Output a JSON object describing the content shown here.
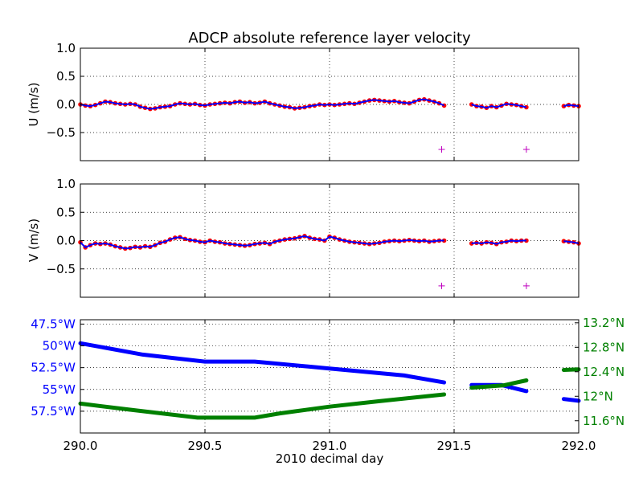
{
  "title": "ADCP absolute reference layer velocity",
  "xlabel": "2010 decimal day",
  "colors": {
    "u_points": "#ff0000",
    "u_line": "#0000ff",
    "v_points": "#ff0000",
    "v_line": "#0000ff",
    "flag_marker": "#bf00bf",
    "lon": "#0000ff",
    "lat": "#008000",
    "grid": "#000000"
  },
  "chart_data": [
    {
      "type": "scatter",
      "id": "u",
      "ylabel": "U (m/s)",
      "xlim": [
        290.0,
        292.0
      ],
      "ylim": [
        -1.0,
        1.0
      ],
      "yticks": [
        1.0,
        0.5,
        0.0,
        -0.5
      ],
      "ytick_labels": [
        "1.0",
        "0.5",
        "0.0",
        "−0.5"
      ],
      "grid": true,
      "series": [
        {
          "kind": "points+line",
          "x": [
            290.0,
            290.02,
            290.04,
            290.06,
            290.08,
            290.1,
            290.12,
            290.14,
            290.16,
            290.18,
            290.2,
            290.22,
            290.24,
            290.26,
            290.28,
            290.3,
            290.32,
            290.34,
            290.36,
            290.38,
            290.4,
            290.42,
            290.44,
            290.46,
            290.48,
            290.5,
            290.52,
            290.54,
            290.56,
            290.58,
            290.6,
            290.62,
            290.64,
            290.66,
            290.68,
            290.7,
            290.72,
            290.74,
            290.76,
            290.78,
            290.8,
            290.82,
            290.84,
            290.86,
            290.88,
            290.9,
            290.92,
            290.94,
            290.96,
            290.98,
            291.0,
            291.02,
            291.04,
            291.06,
            291.08,
            291.1,
            291.12,
            291.14,
            291.16,
            291.18,
            291.2,
            291.22,
            291.24,
            291.26,
            291.28,
            291.3,
            291.32,
            291.34,
            291.36,
            291.38,
            291.4,
            291.42,
            291.44,
            291.46,
            291.57,
            291.59,
            291.61,
            291.63,
            291.65,
            291.67,
            291.69,
            291.71,
            291.73,
            291.75,
            291.77,
            291.79,
            291.94,
            291.96,
            291.98,
            292.0
          ],
          "y": [
            0.0,
            -0.02,
            -0.03,
            -0.01,
            0.02,
            0.05,
            0.04,
            0.02,
            0.01,
            0.0,
            0.01,
            0.0,
            -0.04,
            -0.06,
            -0.08,
            -0.07,
            -0.05,
            -0.04,
            -0.03,
            0.0,
            0.02,
            0.01,
            0.0,
            0.01,
            -0.01,
            -0.02,
            0.0,
            0.01,
            0.02,
            0.03,
            0.02,
            0.04,
            0.05,
            0.03,
            0.04,
            0.02,
            0.03,
            0.05,
            0.02,
            0.0,
            -0.02,
            -0.04,
            -0.05,
            -0.07,
            -0.06,
            -0.05,
            -0.03,
            -0.02,
            0.0,
            -0.01,
            0.0,
            -0.01,
            0.0,
            0.01,
            0.02,
            0.01,
            0.03,
            0.05,
            0.07,
            0.08,
            0.07,
            0.06,
            0.05,
            0.06,
            0.04,
            0.03,
            0.02,
            0.05,
            0.08,
            0.09,
            0.07,
            0.05,
            0.02,
            -0.02,
            0.0,
            -0.03,
            -0.04,
            -0.06,
            -0.03,
            -0.05,
            -0.02,
            0.01,
            0.0,
            -0.01,
            -0.03,
            -0.05,
            -0.03,
            -0.01,
            -0.02,
            -0.03
          ]
        },
        {
          "kind": "flag-markers",
          "x": [
            291.45,
            291.79
          ],
          "y": [
            -0.8,
            -0.8
          ]
        }
      ]
    },
    {
      "type": "scatter",
      "id": "v",
      "ylabel": "V (m/s)",
      "xlim": [
        290.0,
        292.0
      ],
      "ylim": [
        -1.0,
        1.0
      ],
      "yticks": [
        1.0,
        0.5,
        0.0,
        -0.5
      ],
      "ytick_labels": [
        "1.0",
        "0.5",
        "0.0",
        "−0.5"
      ],
      "grid": true,
      "series": [
        {
          "kind": "points+line",
          "x": [
            290.0,
            290.02,
            290.04,
            290.06,
            290.08,
            290.1,
            290.12,
            290.14,
            290.16,
            290.18,
            290.2,
            290.22,
            290.24,
            290.26,
            290.28,
            290.3,
            290.32,
            290.34,
            290.36,
            290.38,
            290.4,
            290.42,
            290.44,
            290.46,
            290.48,
            290.5,
            290.52,
            290.54,
            290.56,
            290.58,
            290.6,
            290.62,
            290.64,
            290.66,
            290.68,
            290.7,
            290.72,
            290.74,
            290.76,
            290.78,
            290.8,
            290.82,
            290.84,
            290.86,
            290.88,
            290.9,
            290.92,
            290.94,
            290.96,
            290.98,
            291.0,
            291.02,
            291.04,
            291.06,
            291.08,
            291.1,
            291.12,
            291.14,
            291.16,
            291.18,
            291.2,
            291.22,
            291.24,
            291.26,
            291.28,
            291.3,
            291.32,
            291.34,
            291.36,
            291.38,
            291.4,
            291.42,
            291.44,
            291.46,
            291.57,
            291.59,
            291.61,
            291.63,
            291.65,
            291.67,
            291.69,
            291.71,
            291.73,
            291.75,
            291.77,
            291.79,
            291.94,
            291.96,
            291.98,
            292.0
          ],
          "y": [
            -0.03,
            -0.12,
            -0.08,
            -0.05,
            -0.06,
            -0.05,
            -0.07,
            -0.1,
            -0.12,
            -0.14,
            -0.13,
            -0.11,
            -0.12,
            -0.1,
            -0.11,
            -0.08,
            -0.04,
            -0.02,
            0.02,
            0.05,
            0.06,
            0.03,
            0.01,
            0.0,
            -0.02,
            -0.03,
            0.0,
            -0.02,
            -0.03,
            -0.05,
            -0.06,
            -0.07,
            -0.08,
            -0.09,
            -0.08,
            -0.06,
            -0.05,
            -0.04,
            -0.06,
            -0.02,
            0.0,
            0.02,
            0.03,
            0.04,
            0.06,
            0.08,
            0.05,
            0.03,
            0.02,
            0.0,
            0.07,
            0.05,
            0.02,
            0.0,
            -0.02,
            -0.03,
            -0.04,
            -0.05,
            -0.06,
            -0.05,
            -0.04,
            -0.02,
            -0.01,
            0.0,
            -0.01,
            0.0,
            0.01,
            0.0,
            -0.01,
            0.0,
            -0.02,
            -0.01,
            0.0,
            0.0,
            -0.05,
            -0.04,
            -0.05,
            -0.03,
            -0.04,
            -0.06,
            -0.03,
            -0.02,
            0.0,
            -0.01,
            0.0,
            0.0,
            -0.01,
            -0.02,
            -0.03,
            -0.05
          ]
        },
        {
          "kind": "flag-markers",
          "x": [
            291.45,
            291.79
          ],
          "y": [
            -0.8,
            -0.8
          ]
        }
      ]
    },
    {
      "type": "line",
      "id": "position",
      "xlim": [
        290.0,
        292.0
      ],
      "xticks": [
        290.0,
        290.5,
        291.0,
        291.5,
        292.0
      ],
      "xtick_labels": [
        "290.0",
        "290.5",
        "291.0",
        "291.5",
        "292.0"
      ],
      "grid": true,
      "left_axis": {
        "name": "longitude",
        "ylim": [
          -60.0,
          -47.0
        ],
        "yticks": [
          -47.5,
          -50.0,
          -52.5,
          -55.0,
          -57.5
        ],
        "ytick_labels": [
          "47.5°W",
          "50°W",
          "52.5°W",
          "55°W",
          "57.5°W"
        ]
      },
      "right_axis": {
        "name": "latitude",
        "ylim": [
          11.4,
          13.25
        ],
        "yticks": [
          13.2,
          12.8,
          12.4,
          12.0,
          11.6
        ],
        "ytick_labels": [
          "13.2°N",
          "12.8°N",
          "12.4°N",
          "12°N",
          "11.6°N"
        ]
      },
      "series": [
        {
          "axis": "left",
          "segments": [
            {
              "x": [
                290.0,
                290.25,
                290.5,
                290.7,
                291.0,
                291.3,
                291.46
              ],
              "y": [
                -49.7,
                -51.0,
                -51.8,
                -51.8,
                -52.6,
                -53.4,
                -54.2
              ]
            },
            {
              "x": [
                291.57,
                291.69,
                291.79
              ],
              "y": [
                -54.5,
                -54.5,
                -55.2
              ]
            },
            {
              "x": [
                291.94,
                292.0
              ],
              "y": [
                -56.1,
                -56.3
              ]
            }
          ]
        },
        {
          "axis": "right",
          "segments": [
            {
              "x": [
                290.0,
                290.2,
                290.47,
                290.7,
                290.8,
                291.0,
                291.2,
                291.46
              ],
              "y": [
                11.88,
                11.78,
                11.65,
                11.65,
                11.72,
                11.83,
                11.92,
                12.03
              ]
            },
            {
              "x": [
                291.57,
                291.7,
                291.79
              ],
              "y": [
                12.14,
                12.18,
                12.26
              ]
            },
            {
              "x": [
                291.94,
                292.0
              ],
              "y": [
                12.43,
                12.44
              ]
            }
          ]
        }
      ]
    }
  ]
}
